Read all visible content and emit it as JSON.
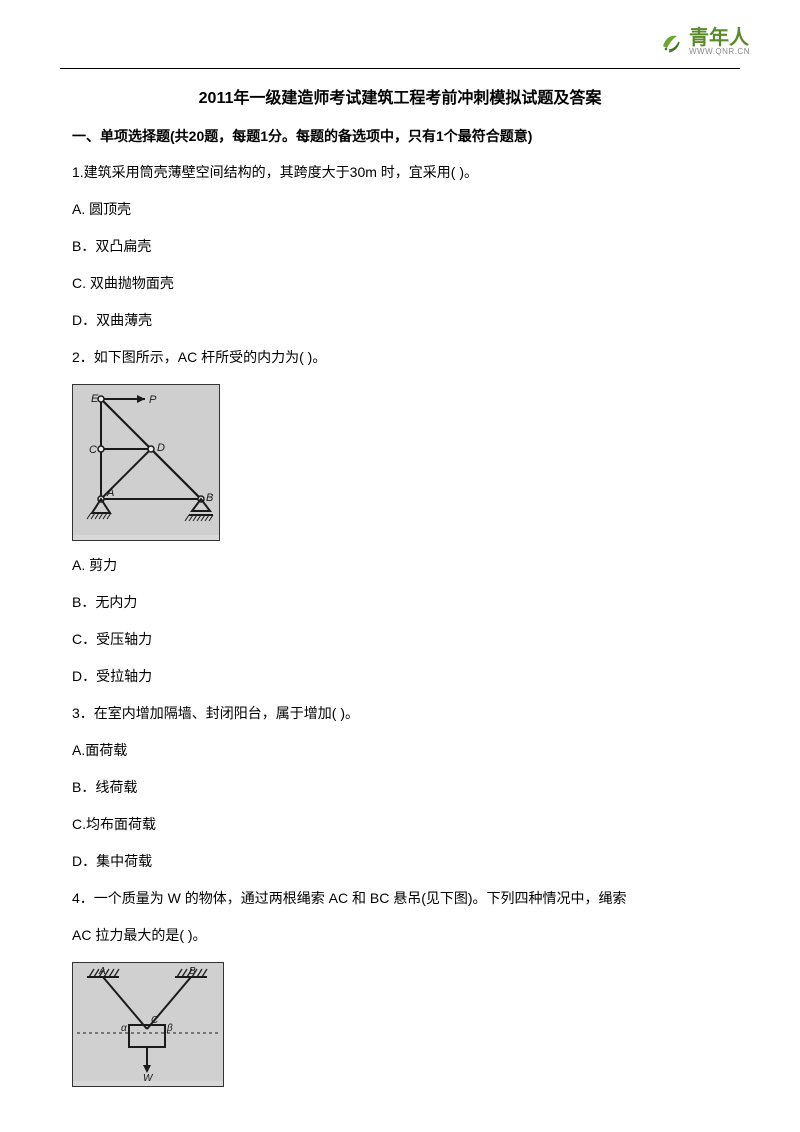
{
  "logo": {
    "main": "青年人",
    "sub": "WWW.QNR.CN",
    "leaf_color": "#6aa82e",
    "swirl_color": "#3a7a1a"
  },
  "title": "2011年一级建造师考试建筑工程考前冲刺模拟试题及答案",
  "section_header": "一、单项选择题(共20题，每题1分。每题的备选项中，只有1个最符合题意)",
  "q1": {
    "stem": "1.建筑采用筒壳薄壁空间结构的，其跨度大于30m 时，宜采用(  )。",
    "a": "A.  圆顶壳",
    "b": "B．双凸扁壳",
    "c": "C.  双曲抛物面壳",
    "d": "D．双曲薄壳"
  },
  "q2": {
    "stem": "2．如下图所示，AC 杆所受的内力为(  )。",
    "a": "A.  剪力",
    "b": "B．无内力",
    "c": "C．受压轴力",
    "d": "D．受拉轴力",
    "fig": {
      "w": 146,
      "h": 150,
      "bg": "#cfcfcf",
      "line": "#1a1a1a",
      "labels": {
        "E": "E",
        "P": "P",
        "C": "C",
        "D": "D",
        "A": "A",
        "B": "B"
      }
    }
  },
  "q3": {
    "stem": "3．在室内增加隔墙、封闭阳台，属于增加(  )。",
    "a": "A.面荷载",
    "b": "B．线荷载",
    "c": "C.均布面荷载",
    "d": "D．集中荷载"
  },
  "q4": {
    "stem1": "4．一个质量为 W 的物体，通过两根绳索 AC 和 BC 悬吊(见下图)。下列四种情况中，绳索",
    "stem2": "AC 拉力最大的是(  )。",
    "fig": {
      "w": 150,
      "h": 118,
      "bg": "#d0d0d0",
      "line": "#1a1a1a",
      "labels": {
        "A": "A",
        "B": "B",
        "C": "C",
        "alpha": "α",
        "beta": "β",
        "W": "W"
      }
    }
  }
}
